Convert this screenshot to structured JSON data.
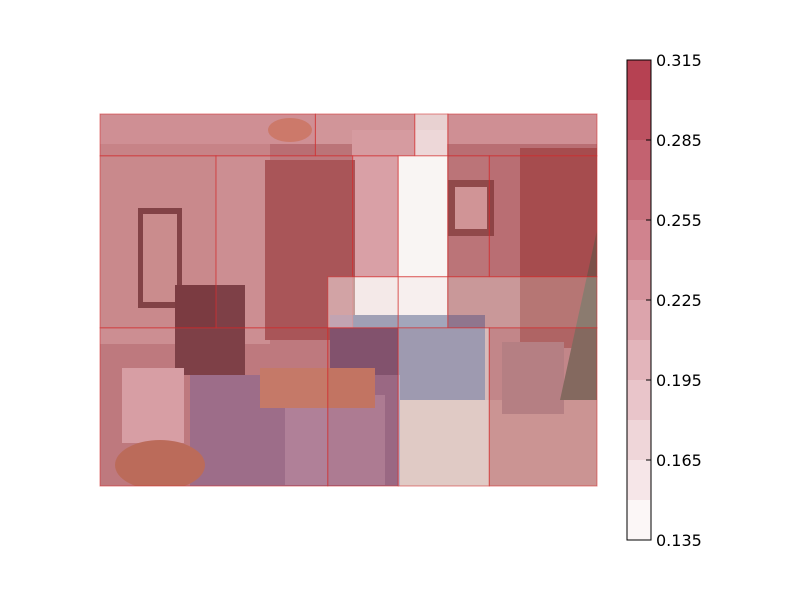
{
  "chart_data": {
    "type": "heatmap",
    "title": "",
    "xlabel": "",
    "ylabel": "",
    "background_image": "living-room-photo",
    "grid_on": false,
    "overlay_grid": {
      "columns": 6,
      "rows": 4,
      "column_edges": [
        0,
        1,
        2,
        3,
        4,
        5,
        6
      ],
      "row_edges": [
        0,
        1,
        2,
        3,
        4
      ]
    },
    "cells": [
      {
        "c0": 0,
        "c1": 2.6,
        "r0": 0,
        "r1": 0.45,
        "value": 0.3
      },
      {
        "c0": 2.6,
        "c1": 3.8,
        "r0": 0,
        "r1": 0.45,
        "value": 0.29
      },
      {
        "c0": 3.8,
        "c1": 4.2,
        "r0": 0,
        "r1": 0.45,
        "value": 0.19
      },
      {
        "c0": 4.2,
        "c1": 6,
        "r0": 0,
        "r1": 0.45,
        "value": 0.3
      },
      {
        "c0": 0,
        "c1": 1.4,
        "r0": 0.45,
        "r1": 2.3,
        "value": 0.29
      },
      {
        "c0": 1.4,
        "c1": 3.05,
        "r0": 0.45,
        "r1": 2.3,
        "value": 0.28
      },
      {
        "c0": 3.05,
        "c1": 3.6,
        "r0": 0.45,
        "r1": 1.75,
        "value": 0.28
      },
      {
        "c0": 3.6,
        "c1": 4.2,
        "r0": 0.45,
        "r1": 1.75,
        "value": 0.14
      },
      {
        "c0": 4.2,
        "c1": 4.7,
        "r0": 0.45,
        "r1": 1.75,
        "value": 0.29
      },
      {
        "c0": 4.7,
        "c1": 6,
        "r0": 0.45,
        "r1": 1.75,
        "value": 0.3
      },
      {
        "c0": 2.75,
        "c1": 3.6,
        "r0": 1.75,
        "r1": 2.3,
        "value": 0.16
      },
      {
        "c0": 3.6,
        "c1": 4.2,
        "r0": 1.75,
        "r1": 2.3,
        "value": 0.15
      },
      {
        "c0": 4.2,
        "c1": 6,
        "r0": 1.75,
        "r1": 2.3,
        "value": 0.23
      },
      {
        "c0": 0,
        "c1": 2.75,
        "r0": 2.3,
        "r1": 4,
        "value": 0.28
      },
      {
        "c0": 2.75,
        "c1": 3.6,
        "r0": 2.3,
        "r1": 4,
        "value": 0.29
      },
      {
        "c0": 3.6,
        "c1": 4.7,
        "r0": 2.3,
        "r1": 4,
        "value": 0.17
      },
      {
        "c0": 4.7,
        "c1": 6,
        "r0": 2.3,
        "r1": 4,
        "value": 0.26
      }
    ],
    "colorbar": {
      "min": 0.135,
      "max": 0.315,
      "levels": [
        0.135,
        0.15,
        0.165,
        0.18,
        0.195,
        0.21,
        0.225,
        0.24,
        0.255,
        0.27,
        0.285,
        0.3,
        0.315
      ],
      "ticks": [
        0.315,
        0.285,
        0.255,
        0.225,
        0.195,
        0.165,
        0.135
      ],
      "tick_labels": [
        "0.315",
        "0.285",
        "0.255",
        "0.225",
        "0.195",
        "0.165",
        "0.135"
      ],
      "color_low": "#ffffff",
      "color_high": "#b3394a"
    }
  }
}
